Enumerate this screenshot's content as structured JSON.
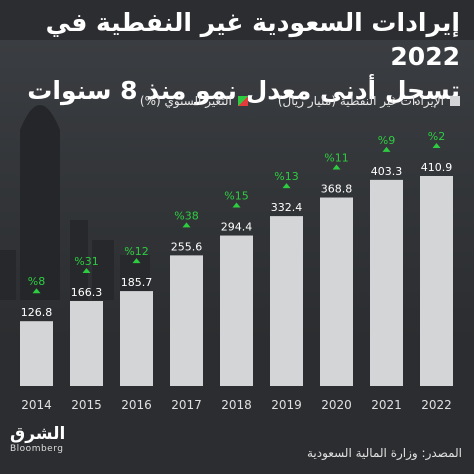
{
  "title_line1": "إيرادات السعودية غير النفطية في 2022",
  "title_line2": "تسجل أدنى معدل نمو منذ 8 سنوات",
  "legend": {
    "bars": "الإيرادات غير النفطية (مليار ريال)",
    "growth": "التغير السنوي (%)"
  },
  "source": "المصدر: وزارة المالية السعودية",
  "logo": {
    "arabic": "الشرق",
    "english": "Bloomberg"
  },
  "colors": {
    "bar": "#d3d5d6",
    "growth_up": "#2ecc40",
    "background": "#2b2d30"
  },
  "chart_data": {
    "type": "bar",
    "categories": [
      "2014",
      "2015",
      "2016",
      "2017",
      "2018",
      "2019",
      "2020",
      "2021",
      "2022"
    ],
    "values": [
      126.8,
      166.3,
      185.7,
      255.6,
      294.4,
      332.4,
      368.8,
      403.3,
      410.9
    ],
    "value_labels": [
      "126.8",
      "166.3",
      "185.7",
      "255.6",
      "294.4",
      "332.4",
      "368.8",
      "403.3",
      "410.9"
    ],
    "growth_labels": [
      "%8",
      "%31",
      "%12",
      "%38",
      "%15",
      "%13",
      "%11",
      "%9",
      "%2"
    ],
    "ylim": [
      0,
      410.9
    ],
    "grid": false
  }
}
